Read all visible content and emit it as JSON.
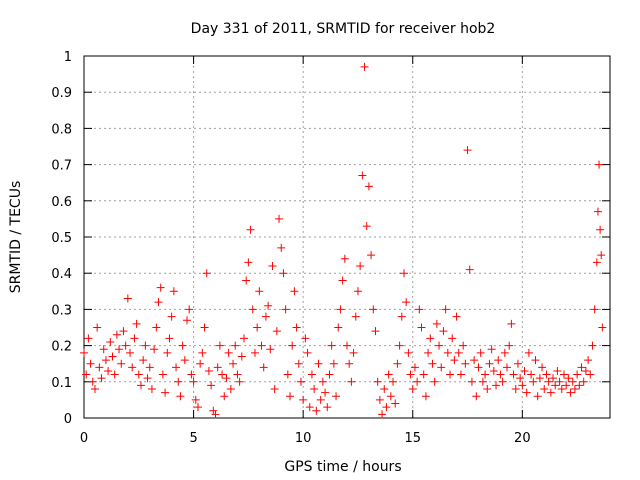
{
  "chart_data": {
    "type": "scatter",
    "title": "Day 331 of 2011, SRMTID for receiver hob2",
    "xlabel": "GPS time / hours",
    "ylabel": "SRMTID / TECUs",
    "xlim": [
      0,
      24
    ],
    "ylim": [
      0,
      1
    ],
    "xticks": [
      0,
      5,
      10,
      15,
      20
    ],
    "xtick_labels": [
      "0",
      "5",
      "10",
      "15",
      "20"
    ],
    "yticks": [
      0,
      0.1,
      0.2,
      0.3,
      0.4,
      0.5,
      0.6,
      0.7,
      0.8,
      0.9,
      1
    ],
    "ytick_labels": [
      "0",
      "0.1",
      "0.2",
      "0.3",
      "0.4",
      "0.5",
      "0.6",
      "0.7",
      "0.8",
      "0.9",
      "1"
    ],
    "grid": true,
    "marker": "+",
    "color": "#ff0000",
    "series": [
      {
        "name": "SRMTID",
        "points": [
          [
            0.0,
            0.18
          ],
          [
            0.1,
            0.12
          ],
          [
            0.2,
            0.22
          ],
          [
            0.3,
            0.15
          ],
          [
            0.4,
            0.1
          ],
          [
            0.5,
            0.08
          ],
          [
            0.6,
            0.25
          ],
          [
            0.7,
            0.14
          ],
          [
            0.8,
            0.11
          ],
          [
            0.9,
            0.19
          ],
          [
            1.0,
            0.16
          ],
          [
            1.1,
            0.13
          ],
          [
            1.2,
            0.21
          ],
          [
            1.3,
            0.17
          ],
          [
            1.4,
            0.12
          ],
          [
            1.5,
            0.23
          ],
          [
            1.6,
            0.19
          ],
          [
            1.7,
            0.15
          ],
          [
            1.8,
            0.24
          ],
          [
            1.9,
            0.2
          ],
          [
            2.0,
            0.33
          ],
          [
            2.1,
            0.18
          ],
          [
            2.2,
            0.14
          ],
          [
            2.3,
            0.22
          ],
          [
            2.4,
            0.26
          ],
          [
            2.5,
            0.12
          ],
          [
            2.6,
            0.09
          ],
          [
            2.7,
            0.16
          ],
          [
            2.8,
            0.2
          ],
          [
            2.9,
            0.11
          ],
          [
            3.0,
            0.14
          ],
          [
            3.1,
            0.08
          ],
          [
            3.2,
            0.19
          ],
          [
            3.3,
            0.25
          ],
          [
            3.4,
            0.32
          ],
          [
            3.5,
            0.36
          ],
          [
            3.6,
            0.12
          ],
          [
            3.7,
            0.07
          ],
          [
            3.8,
            0.18
          ],
          [
            3.9,
            0.22
          ],
          [
            4.0,
            0.28
          ],
          [
            4.1,
            0.35
          ],
          [
            4.2,
            0.14
          ],
          [
            4.3,
            0.1
          ],
          [
            4.4,
            0.06
          ],
          [
            4.5,
            0.2
          ],
          [
            4.6,
            0.16
          ],
          [
            4.7,
            0.27
          ],
          [
            4.8,
            0.3
          ],
          [
            4.9,
            0.12
          ],
          [
            5.0,
            0.1
          ],
          [
            5.1,
            0.05
          ],
          [
            5.2,
            0.03
          ],
          [
            5.3,
            0.15
          ],
          [
            5.4,
            0.18
          ],
          [
            5.5,
            0.25
          ],
          [
            5.6,
            0.4
          ],
          [
            5.7,
            0.13
          ],
          [
            5.8,
            0.09
          ],
          [
            5.9,
            0.02
          ],
          [
            6.0,
            0.01
          ],
          [
            6.1,
            0.14
          ],
          [
            6.2,
            0.2
          ],
          [
            6.3,
            0.12
          ],
          [
            6.4,
            0.06
          ],
          [
            6.5,
            0.11
          ],
          [
            6.6,
            0.18
          ],
          [
            6.7,
            0.08
          ],
          [
            6.8,
            0.15
          ],
          [
            6.9,
            0.2
          ],
          [
            7.0,
            0.12
          ],
          [
            7.1,
            0.1
          ],
          [
            7.2,
            0.17
          ],
          [
            7.3,
            0.22
          ],
          [
            7.4,
            0.38
          ],
          [
            7.5,
            0.43
          ],
          [
            7.6,
            0.52
          ],
          [
            7.7,
            0.3
          ],
          [
            7.8,
            0.18
          ],
          [
            7.9,
            0.25
          ],
          [
            8.0,
            0.35
          ],
          [
            8.1,
            0.2
          ],
          [
            8.2,
            0.14
          ],
          [
            8.3,
            0.28
          ],
          [
            8.4,
            0.31
          ],
          [
            8.5,
            0.19
          ],
          [
            8.6,
            0.42
          ],
          [
            8.7,
            0.08
          ],
          [
            8.8,
            0.24
          ],
          [
            8.9,
            0.55
          ],
          [
            9.0,
            0.47
          ],
          [
            9.1,
            0.4
          ],
          [
            9.2,
            0.3
          ],
          [
            9.3,
            0.12
          ],
          [
            9.4,
            0.06
          ],
          [
            9.5,
            0.2
          ],
          [
            9.6,
            0.35
          ],
          [
            9.7,
            0.25
          ],
          [
            9.8,
            0.15
          ],
          [
            9.9,
            0.1
          ],
          [
            10.0,
            0.05
          ],
          [
            10.1,
            0.22
          ],
          [
            10.2,
            0.18
          ],
          [
            10.3,
            0.03
          ],
          [
            10.4,
            0.12
          ],
          [
            10.5,
            0.08
          ],
          [
            10.6,
            0.02
          ],
          [
            10.7,
            0.15
          ],
          [
            10.8,
            0.05
          ],
          [
            10.9,
            0.1
          ],
          [
            11.0,
            0.07
          ],
          [
            11.1,
            0.03
          ],
          [
            11.2,
            0.12
          ],
          [
            11.3,
            0.2
          ],
          [
            11.4,
            0.15
          ],
          [
            11.5,
            0.06
          ],
          [
            11.6,
            0.25
          ],
          [
            11.7,
            0.3
          ],
          [
            11.8,
            0.38
          ],
          [
            11.9,
            0.44
          ],
          [
            12.0,
            0.2
          ],
          [
            12.1,
            0.15
          ],
          [
            12.2,
            0.1
          ],
          [
            12.3,
            0.18
          ],
          [
            12.4,
            0.28
          ],
          [
            12.5,
            0.35
          ],
          [
            12.6,
            0.42
          ],
          [
            12.7,
            0.67
          ],
          [
            12.8,
            0.97
          ],
          [
            12.9,
            0.53
          ],
          [
            13.0,
            0.64
          ],
          [
            13.1,
            0.45
          ],
          [
            13.2,
            0.3
          ],
          [
            13.3,
            0.24
          ],
          [
            13.4,
            0.1
          ],
          [
            13.5,
            0.05
          ],
          [
            13.6,
            0.01
          ],
          [
            13.7,
            0.08
          ],
          [
            13.8,
            0.03
          ],
          [
            13.9,
            0.12
          ],
          [
            14.0,
            0.06
          ],
          [
            14.1,
            0.1
          ],
          [
            14.2,
            0.04
          ],
          [
            14.3,
            0.15
          ],
          [
            14.4,
            0.2
          ],
          [
            14.5,
            0.28
          ],
          [
            14.6,
            0.4
          ],
          [
            14.7,
            0.32
          ],
          [
            14.8,
            0.18
          ],
          [
            14.9,
            0.12
          ],
          [
            15.0,
            0.08
          ],
          [
            15.1,
            0.14
          ],
          [
            15.2,
            0.1
          ],
          [
            15.3,
            0.3
          ],
          [
            15.4,
            0.25
          ],
          [
            15.5,
            0.12
          ],
          [
            15.6,
            0.06
          ],
          [
            15.7,
            0.18
          ],
          [
            15.8,
            0.22
          ],
          [
            15.9,
            0.15
          ],
          [
            16.0,
            0.1
          ],
          [
            16.1,
            0.26
          ],
          [
            16.2,
            0.2
          ],
          [
            16.3,
            0.14
          ],
          [
            16.4,
            0.24
          ],
          [
            16.5,
            0.3
          ],
          [
            16.6,
            0.18
          ],
          [
            16.7,
            0.12
          ],
          [
            16.8,
            0.22
          ],
          [
            16.9,
            0.16
          ],
          [
            17.0,
            0.28
          ],
          [
            17.1,
            0.18
          ],
          [
            17.2,
            0.12
          ],
          [
            17.3,
            0.2
          ],
          [
            17.4,
            0.15
          ],
          [
            17.5,
            0.74
          ],
          [
            17.6,
            0.41
          ],
          [
            17.7,
            0.1
          ],
          [
            17.8,
            0.16
          ],
          [
            17.9,
            0.06
          ],
          [
            18.0,
            0.14
          ],
          [
            18.1,
            0.18
          ],
          [
            18.2,
            0.1
          ],
          [
            18.3,
            0.12
          ],
          [
            18.4,
            0.08
          ],
          [
            18.5,
            0.15
          ],
          [
            18.6,
            0.19
          ],
          [
            18.7,
            0.13
          ],
          [
            18.8,
            0.09
          ],
          [
            18.9,
            0.16
          ],
          [
            19.0,
            0.12
          ],
          [
            19.1,
            0.1
          ],
          [
            19.2,
            0.18
          ],
          [
            19.3,
            0.14
          ],
          [
            19.4,
            0.2
          ],
          [
            19.5,
            0.26
          ],
          [
            19.6,
            0.12
          ],
          [
            19.7,
            0.08
          ],
          [
            19.8,
            0.15
          ],
          [
            19.9,
            0.11
          ],
          [
            20.0,
            0.09
          ],
          [
            20.1,
            0.13
          ],
          [
            20.2,
            0.07
          ],
          [
            20.3,
            0.18
          ],
          [
            20.4,
            0.12
          ],
          [
            20.5,
            0.1
          ],
          [
            20.6,
            0.16
          ],
          [
            20.7,
            0.06
          ],
          [
            20.8,
            0.11
          ],
          [
            20.9,
            0.14
          ],
          [
            21.0,
            0.08
          ],
          [
            21.1,
            0.12
          ],
          [
            21.2,
            0.1
          ],
          [
            21.3,
            0.07
          ],
          [
            21.4,
            0.11
          ],
          [
            21.5,
            0.09
          ],
          [
            21.6,
            0.13
          ],
          [
            21.7,
            0.1
          ],
          [
            21.8,
            0.08
          ],
          [
            21.9,
            0.12
          ],
          [
            22.0,
            0.09
          ],
          [
            22.1,
            0.11
          ],
          [
            22.2,
            0.07
          ],
          [
            22.3,
            0.1
          ],
          [
            22.4,
            0.08
          ],
          [
            22.5,
            0.12
          ],
          [
            22.6,
            0.09
          ],
          [
            22.7,
            0.14
          ],
          [
            22.8,
            0.1
          ],
          [
            22.9,
            0.13
          ],
          [
            23.0,
            0.16
          ],
          [
            23.1,
            0.12
          ],
          [
            23.2,
            0.2
          ],
          [
            23.3,
            0.3
          ],
          [
            23.4,
            0.43
          ],
          [
            23.45,
            0.57
          ],
          [
            23.5,
            0.7
          ],
          [
            23.55,
            0.52
          ],
          [
            23.6,
            0.45
          ],
          [
            23.65,
            0.25
          ]
        ]
      }
    ]
  }
}
